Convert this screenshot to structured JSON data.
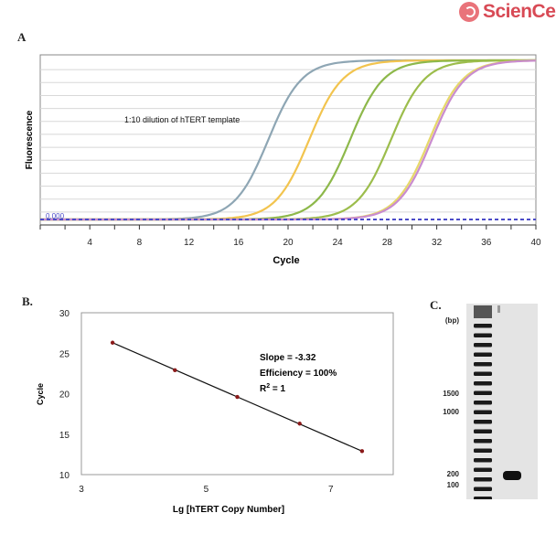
{
  "brand": {
    "name": "ScienCell"
  },
  "panels": {
    "a": "A",
    "b": "B.",
    "c": "C."
  },
  "chart_data": [
    {
      "type": "line",
      "panel": "A",
      "xlabel": "Cycle",
      "ylabel": "Fluorescence",
      "xlim": [
        0,
        40
      ],
      "xticks": [
        4,
        8,
        12,
        16,
        20,
        24,
        28,
        32,
        36,
        40
      ],
      "annotation": "1:10 dilution of hTERT template",
      "threshold_label": "0.000",
      "grid": true,
      "series": [
        {
          "color": "#8ea6b4",
          "midpoint": 18.4,
          "values": "sigmoid"
        },
        {
          "color": "#f2c44e",
          "midpoint": 21.7,
          "values": "sigmoid"
        },
        {
          "color": "#8db84a",
          "midpoint": 25.0,
          "values": "sigmoid"
        },
        {
          "color": "#9cbd4c",
          "midpoint": 28.3,
          "values": "sigmoid"
        },
        {
          "color": "#e6d86a",
          "midpoint": 31.4,
          "values": "sigmoid"
        },
        {
          "color": "#c98ccf",
          "midpoint": 31.6,
          "values": "sigmoid"
        }
      ]
    },
    {
      "type": "scatter",
      "panel": "B.",
      "xlabel": "Lg [hTERT Copy Number]",
      "ylabel": "Cycle",
      "xlim": [
        3,
        8
      ],
      "ylim": [
        10,
        30
      ],
      "xticks": [
        3,
        5,
        7
      ],
      "yticks": [
        10,
        15,
        20,
        25,
        30
      ],
      "x": [
        3.5,
        4.5,
        5.5,
        6.5,
        7.5
      ],
      "y": [
        26.3,
        22.9,
        19.6,
        16.3,
        12.9
      ],
      "annotations": {
        "slope": "Slope = -3.32",
        "efficiency": "Efficiency = 100%",
        "r2_prefix": "R",
        "r2_sup": "2",
        "r2_suffix": " = 1"
      }
    }
  ],
  "gel": {
    "unit_label": "(bp)",
    "markers": [
      "1500",
      "1000",
      "200",
      "100"
    ],
    "ladder_band_count": 19,
    "sample_band": "100"
  }
}
